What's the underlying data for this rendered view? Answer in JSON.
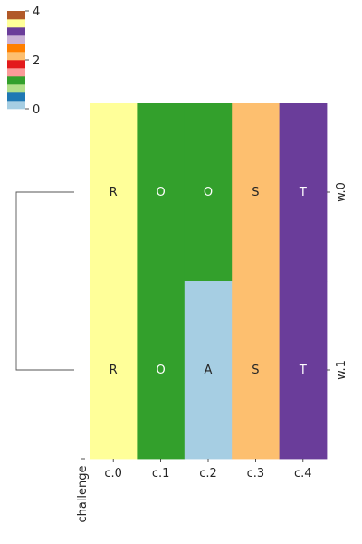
{
  "chart_data": {
    "type": "heatmap",
    "title": "",
    "columns": [
      "c.0",
      "c.1",
      "c.2",
      "c.3",
      "c.4"
    ],
    "rows": [
      "w.0",
      "w.1"
    ],
    "values": [
      [
        4,
        0,
        0,
        1,
        3
      ],
      [
        4,
        0,
        0,
        1,
        3
      ]
    ],
    "color_codes": [
      [
        10,
        3,
        3,
        6,
        9
      ],
      [
        10,
        3,
        0,
        6,
        9
      ]
    ],
    "cell_labels": [
      [
        "R",
        "O",
        "O",
        "S",
        "T"
      ],
      [
        "R",
        "O",
        "A",
        "S",
        "T"
      ]
    ],
    "ylabel": "challenge",
    "row_dendrogram": true,
    "colorbar": {
      "ticks": [
        0,
        2,
        4
      ],
      "palette": [
        "#a6cee3",
        "#1f78b4",
        "#b2df8a",
        "#33a02c",
        "#fb9a99",
        "#e31a1c",
        "#fdbf6f",
        "#ff7f00",
        "#cab2d6",
        "#6a3d9a",
        "#ffff99",
        "#b15928"
      ]
    },
    "label_colors": {
      "light": "#ffffff",
      "dark": "#262626"
    }
  }
}
